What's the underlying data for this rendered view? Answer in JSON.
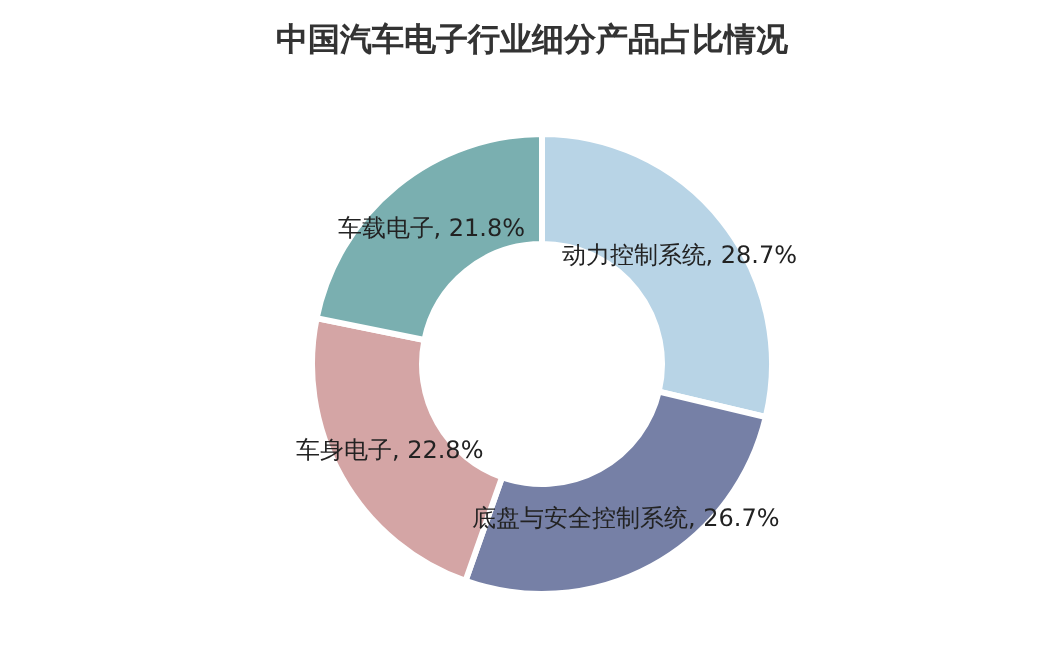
{
  "chart_data": {
    "type": "donut",
    "title": "中国汽车电子行业细分产品占比情况",
    "categories": [
      "动力控制系统",
      "底盘与安全控制系统",
      "车身电子",
      "车载电子"
    ],
    "values": [
      28.7,
      26.7,
      22.8,
      21.8
    ],
    "value_labels": [
      "28.7%",
      "26.7%",
      "22.8%",
      "21.8%"
    ],
    "colors": [
      "#b8d4e6",
      "#7680a6",
      "#d4a5a5",
      "#7aafb0"
    ]
  }
}
